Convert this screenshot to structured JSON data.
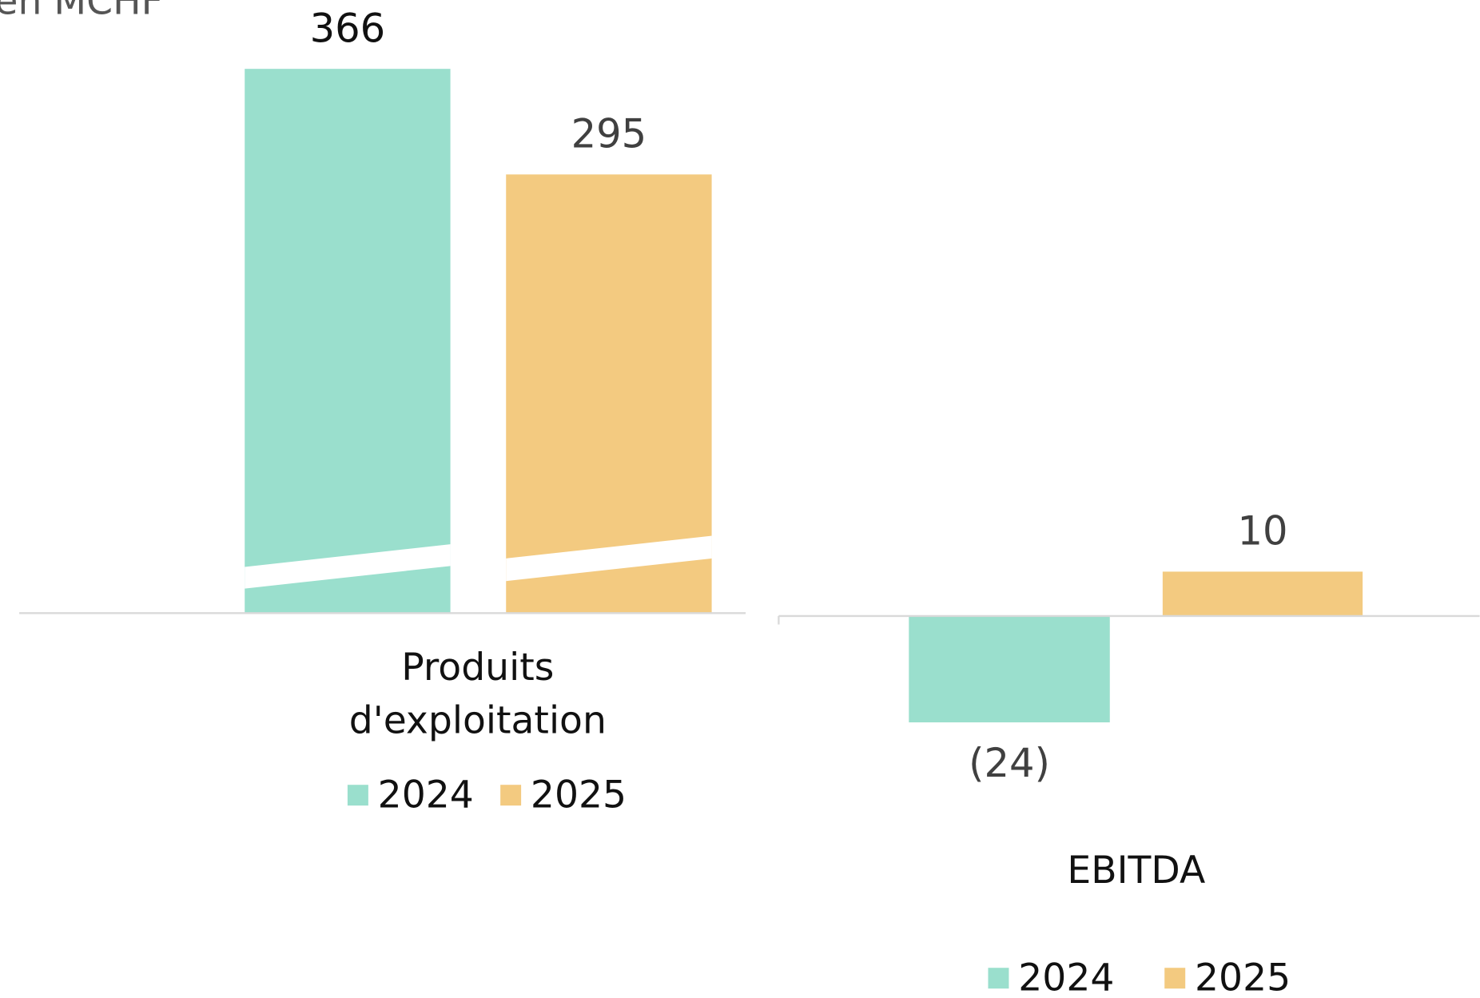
{
  "chart_data": [
    {
      "type": "bar",
      "y_label": "en MCHF",
      "categories": [
        "Produits d'exploitation"
      ],
      "series": [
        {
          "name": "2024",
          "color": "#9adfcd",
          "values": [
            366
          ]
        },
        {
          "name": "2025",
          "color": "#f3ca80",
          "values": [
            295
          ]
        }
      ],
      "ylim": [
        0,
        400
      ]
    },
    {
      "type": "bar",
      "categories": [
        "EBITDA"
      ],
      "series": [
        {
          "name": "2024",
          "color": "#9adfcd",
          "values": [
            -24
          ],
          "value_labels": [
            "(24)"
          ]
        },
        {
          "name": "2025",
          "color": "#f3ca80",
          "values": [
            10
          ]
        }
      ],
      "ylim": [
        -30,
        20
      ]
    }
  ]
}
